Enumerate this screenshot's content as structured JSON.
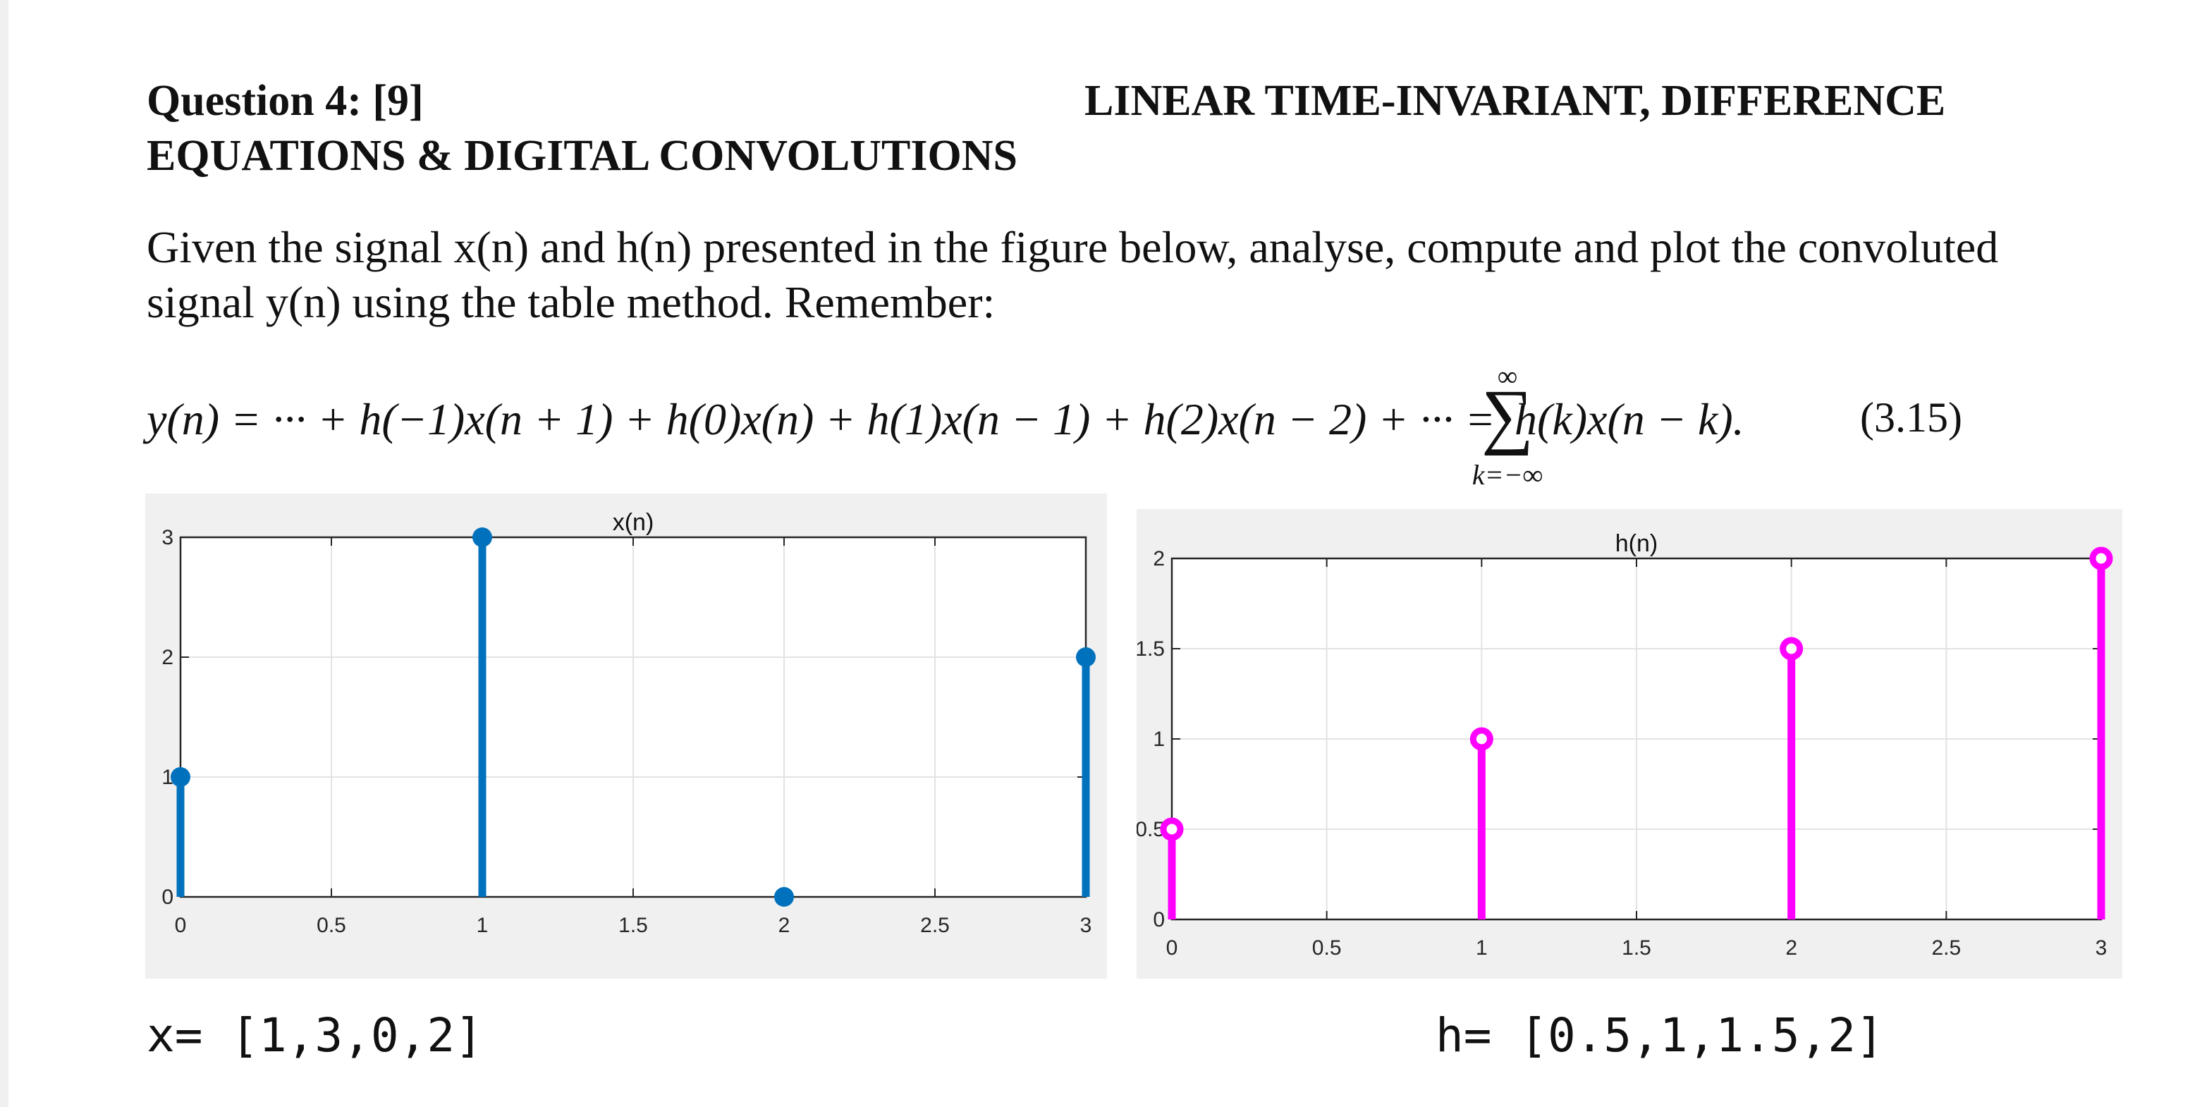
{
  "header": {
    "question": "Question 4: [9]",
    "topic_line1": "LINEAR TIME-INVARIANT, DIFFERENCE",
    "topic_line2": "EQUATIONS & DIGITAL CONVOLUTIONS"
  },
  "prompt": {
    "line1": "Given the signal x(n) and h(n) presented in the figure below, analyse, compute and plot the convoluted",
    "line2": "signal y(n) using the table method. Remember:"
  },
  "equation": {
    "lhs": "y(n) = ··· + h(−1)x(n + 1) + h(0)x(n) + h(1)x(n − 1) + h(2)x(n − 2) + ··· =",
    "sum_upper": "∞",
    "sum_symbol": "∑",
    "sum_lower": "k=−∞",
    "rhs": "h(k)x(n − k).",
    "number": "(3.15)"
  },
  "chart_data": [
    {
      "type": "stem",
      "title": "x(n)",
      "x": [
        0,
        1,
        2,
        3
      ],
      "values": [
        1,
        3,
        0,
        2
      ],
      "xlim": [
        0,
        3
      ],
      "ylim": [
        0,
        3
      ],
      "xticks": [
        "0",
        "0.5",
        "1",
        "1.5",
        "2",
        "2.5",
        "3"
      ],
      "yticks": [
        "0",
        "1",
        "2",
        "3"
      ],
      "grid": true,
      "color": "#0072BD",
      "marker": "filled"
    },
    {
      "type": "stem",
      "title": "h(n)",
      "x": [
        0,
        1,
        2,
        3
      ],
      "values": [
        0.5,
        1,
        1.5,
        2
      ],
      "xlim": [
        0,
        3
      ],
      "ylim": [
        0,
        2
      ],
      "xticks": [
        "0",
        "0.5",
        "1",
        "1.5",
        "2",
        "2.5",
        "3"
      ],
      "yticks": [
        "0",
        "0.5",
        "1",
        "1.5",
        "2"
      ],
      "grid": true,
      "color": "#FF00FF",
      "marker": "open"
    }
  ],
  "vectors": {
    "x_def": "x= [1,3,0,2]",
    "h_def": "h= [0.5,1,1.5,2]"
  }
}
